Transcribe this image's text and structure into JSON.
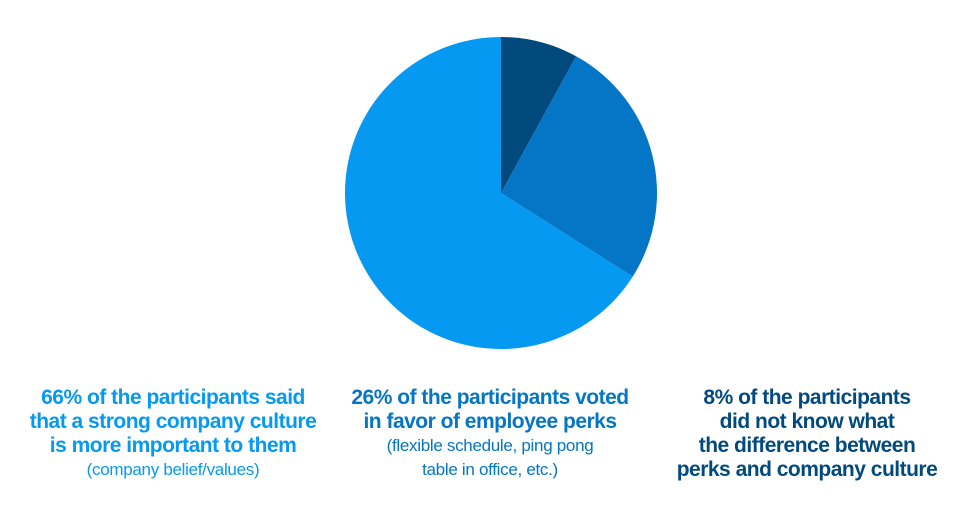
{
  "chart_data": {
    "type": "pie",
    "title": "",
    "slices": [
      {
        "label": "66% of the participants said that a strong company culture is more important to them",
        "value": 66,
        "color": "#0599f2",
        "caption_head": "66% of the participants said\nthat a strong company culture\nis more important to them",
        "caption_sub": "(company belief/values)"
      },
      {
        "label": "26% of the participants voted in favor of employee perks",
        "value": 26,
        "color": "#0575c5",
        "caption_head": "26% of the participants voted\nin favor of employee perks",
        "caption_sub": "(flexible schedule, ping pong\ntable in office, etc.)"
      },
      {
        "label": "8% of the participants did not know what the difference between perks and company culture",
        "value": 8,
        "color": "#024a7e",
        "caption_head": "8% of the participants\ndid not know what\nthe difference between\nperks and company culture",
        "caption_sub": ""
      }
    ],
    "legend": "none",
    "grid": false
  }
}
